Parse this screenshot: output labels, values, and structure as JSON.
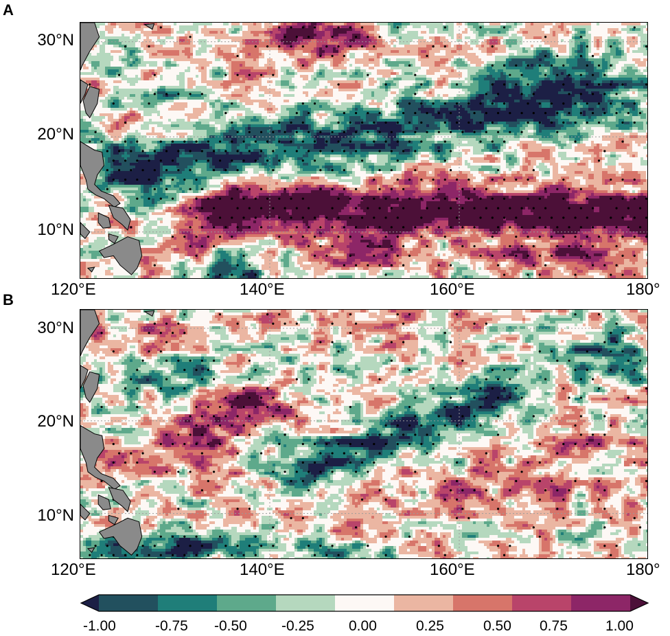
{
  "colors": {
    "scale": [
      "#1c1f45",
      "#22505e",
      "#1f7e79",
      "#5ea98b",
      "#b5d8be",
      "#fdf8f5",
      "#ebb6a2",
      "#d7756a",
      "#b9446a",
      "#8d2667",
      "#4c1038"
    ],
    "land": "#8a8a8a",
    "coast": "#000000",
    "gridline": "#9a9a9a"
  },
  "panels": [
    {
      "label": "A",
      "lat_ticks": [
        "30°N",
        "20°N",
        "10°N"
      ],
      "lon_ticks": [
        "120°E",
        "140°E",
        "160°E",
        "180°"
      ],
      "field": "strong positive band 10–15°N from 135°E to 180°; negative band 18–28°N; positive near 30°N 140°E"
    },
    {
      "label": "B",
      "lat_ticks": [
        "30°N",
        "20°N",
        "10°N"
      ],
      "lon_ticks": [
        "120°E",
        "140°E",
        "160°E",
        "180°"
      ],
      "field": "positive patches 15–22°N 128–145°E; negative band tilted 23°N 165°E to 15°N 145°E; weak positive 10–15°N east"
    }
  ],
  "colorbar": {
    "tick_labels": [
      "-1.00",
      "-0.75",
      "-0.50",
      "-0.25",
      "0.00",
      "0.25",
      "0.50",
      "0.75",
      "1.00"
    ],
    "range": [
      -1.0,
      1.0
    ]
  }
}
